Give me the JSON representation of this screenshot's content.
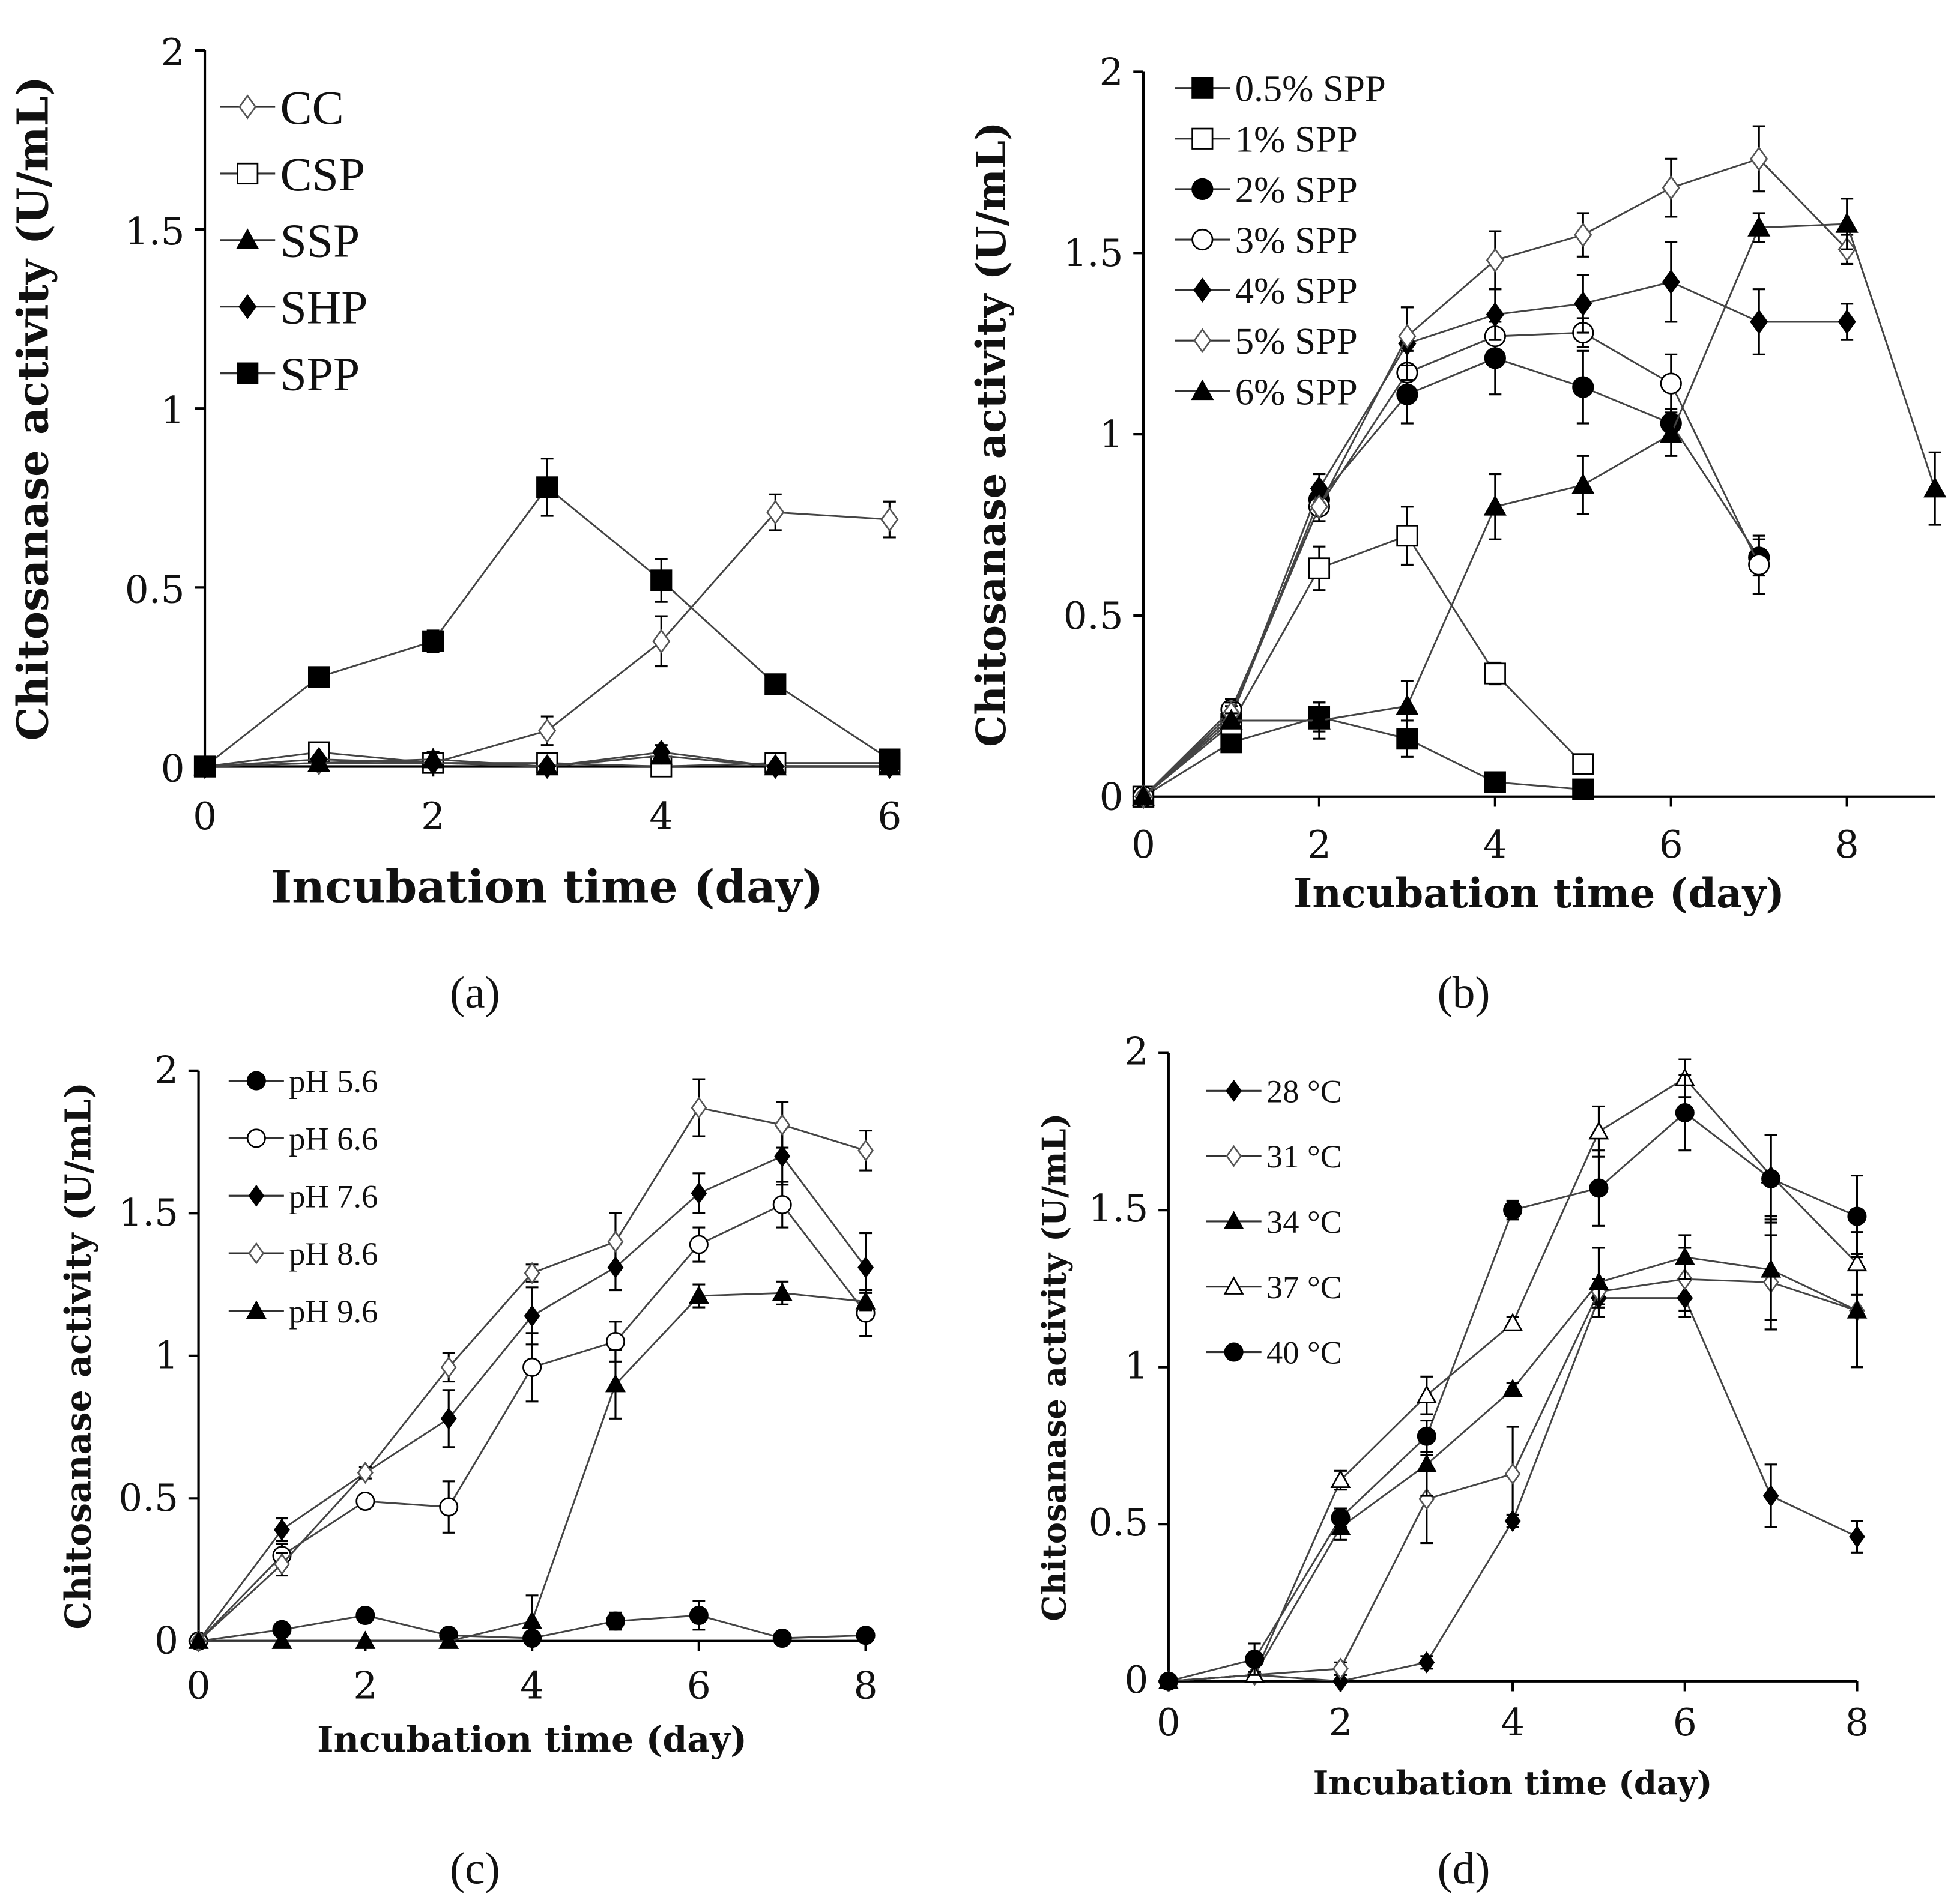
{
  "chart_data": [
    {
      "panel": "(a)",
      "type": "line",
      "xlabel": "Incubation time (day)",
      "ylabel": "Chitosanase activity (U/mL)",
      "xlim": [
        0,
        6
      ],
      "ylim": [
        0,
        2
      ],
      "xticks": [
        0,
        2,
        4,
        6
      ],
      "yticks": [
        0,
        0.5,
        1,
        1.5,
        2
      ],
      "ytick_labels": [
        "0",
        "0.5",
        "1",
        "1.5",
        "2"
      ],
      "legend_position": "top-left",
      "x": [
        0,
        1,
        2,
        3,
        4,
        5,
        6
      ],
      "series": [
        {
          "name": "CC",
          "marker": "open-diamond",
          "values": [
            0,
            0.01,
            0.01,
            0.1,
            0.35,
            0.71,
            0.69
          ],
          "err": [
            0,
            0,
            0,
            0.04,
            0.07,
            0.05,
            0.05
          ]
        },
        {
          "name": "CSP",
          "marker": "open-square",
          "values": [
            0,
            0.04,
            0.01,
            0.01,
            0,
            0.01,
            0.01
          ],
          "err": [
            0,
            0.02,
            0.02,
            0.01,
            0.01,
            0.02,
            0.01
          ]
        },
        {
          "name": "SSP",
          "marker": "filled-triangle",
          "values": [
            0,
            0.01,
            0.02,
            0,
            0.03,
            0,
            0
          ],
          "err": [
            0,
            0.01,
            0.02,
            0,
            0.02,
            0,
            0
          ]
        },
        {
          "name": "SHP",
          "marker": "filled-diamond",
          "values": [
            0,
            0.02,
            0.01,
            0,
            0.04,
            0,
            0
          ],
          "err": [
            0,
            0.01,
            0.03,
            0,
            0.02,
            0,
            0
          ]
        },
        {
          "name": "SPP",
          "marker": "filled-square",
          "values": [
            0,
            0.25,
            0.35,
            0.78,
            0.52,
            0.23,
            0.02
          ],
          "err": [
            0,
            0.01,
            0.03,
            0.08,
            0.06,
            0.01,
            0.02
          ]
        }
      ]
    },
    {
      "panel": "(b)",
      "type": "line",
      "xlabel": "Incubation time (day)",
      "ylabel": "Chitosanase activity (U/mL)",
      "xlim": [
        0,
        9
      ],
      "ylim": [
        0,
        2
      ],
      "xticks": [
        0,
        2,
        4,
        6,
        8
      ],
      "yticks": [
        0,
        0.5,
        1,
        1.5,
        2
      ],
      "ytick_labels": [
        "0",
        "0.5",
        "1",
        "1.5",
        "2"
      ],
      "legend_position": "top-left",
      "series": [
        {
          "name": "0.5% SPP",
          "marker": "filled-square",
          "x": [
            0,
            1,
            2,
            3,
            4,
            5
          ],
          "values": [
            0,
            0.15,
            0.22,
            0.16,
            0.04,
            0.02
          ],
          "err": [
            0,
            0.02,
            0.04,
            0.05,
            0.01,
            0.01
          ]
        },
        {
          "name": "1% SPP",
          "marker": "open-square",
          "x": [
            0,
            1,
            2,
            3,
            4,
            5
          ],
          "values": [
            0,
            0.2,
            0.63,
            0.72,
            0.34,
            0.09
          ],
          "err": [
            0,
            0.03,
            0.06,
            0.08,
            0.03,
            0.01
          ]
        },
        {
          "name": "2% SPP",
          "marker": "filled-circle",
          "x": [
            0,
            1,
            2,
            3,
            4,
            5,
            6,
            7
          ],
          "values": [
            0,
            0.22,
            0.82,
            1.11,
            1.21,
            1.13,
            1.03,
            0.66
          ],
          "err": [
            0,
            0.03,
            0.04,
            0.08,
            0.1,
            0.1,
            0.04,
            0.05
          ]
        },
        {
          "name": "3% SPP",
          "marker": "open-circle",
          "x": [
            0,
            1,
            2,
            3,
            4,
            5,
            6,
            7
          ],
          "values": [
            0,
            0.24,
            0.8,
            1.17,
            1.27,
            1.28,
            1.14,
            0.64
          ],
          "err": [
            0,
            0.03,
            0.04,
            0.06,
            0.06,
            0.04,
            0.08,
            0.08
          ]
        },
        {
          "name": "4% SPP",
          "marker": "filled-diamond",
          "x": [
            0,
            1,
            2,
            3,
            4,
            5,
            6,
            7,
            8
          ],
          "values": [
            0,
            0.22,
            0.85,
            1.25,
            1.33,
            1.36,
            1.42,
            1.31,
            1.31
          ],
          "err": [
            0,
            0.03,
            0.04,
            0.1,
            0.07,
            0.08,
            0.11,
            0.09,
            0.05
          ]
        },
        {
          "name": "5% SPP",
          "marker": "open-diamond",
          "x": [
            0,
            1,
            2,
            3,
            4,
            5,
            6,
            7,
            8
          ],
          "values": [
            0,
            0.23,
            0.8,
            1.27,
            1.48,
            1.55,
            1.68,
            1.76,
            1.51
          ],
          "err": [
            0,
            0.03,
            0.04,
            0.08,
            0.08,
            0.06,
            0.08,
            0.09,
            0.04
          ]
        },
        {
          "name": "6% SPP",
          "marker": "filled-triangle",
          "x": [
            0,
            1,
            2,
            3,
            4,
            5,
            6,
            7,
            8,
            9
          ],
          "values": [
            0,
            0.21,
            0.21,
            0.25,
            0.8,
            0.86,
            1.0,
            1.57,
            1.58,
            0.85
          ],
          "err": [
            0,
            0.02,
            0.05,
            0.07,
            0.09,
            0.08,
            0.06,
            0.04,
            0.07,
            0.1
          ]
        }
      ]
    },
    {
      "panel": "(c)",
      "type": "line",
      "xlabel": "Incubation time (day)",
      "ylabel": "Chitosanase activity (U/mL)",
      "xlim": [
        0,
        8
      ],
      "ylim": [
        0,
        2
      ],
      "xticks": [
        0,
        2,
        4,
        6,
        8
      ],
      "yticks": [
        0,
        0.5,
        1,
        1.5,
        2
      ],
      "ytick_labels": [
        "0",
        "0.5",
        "1",
        "1.5",
        "2"
      ],
      "legend_position": "top-left",
      "x": [
        0,
        1,
        2,
        3,
        4,
        5,
        6,
        7,
        8
      ],
      "series": [
        {
          "name": "pH 5.6",
          "marker": "filled-circle",
          "values": [
            0,
            0.04,
            0.09,
            0.02,
            0.01,
            0.07,
            0.09,
            0.01,
            0.02
          ],
          "err": [
            0,
            0.01,
            0.02,
            0.01,
            0.02,
            0.03,
            0.05,
            0.01,
            0.01
          ]
        },
        {
          "name": "pH 6.6",
          "marker": "open-circle",
          "values": [
            0,
            0.3,
            0.49,
            0.47,
            0.96,
            1.05,
            1.39,
            1.53,
            1.15
          ],
          "err": [
            0,
            0.04,
            0.02,
            0.09,
            0.12,
            0.07,
            0.06,
            0.08,
            0.08
          ]
        },
        {
          "name": "pH 7.6",
          "marker": "filled-diamond",
          "values": [
            0,
            0.39,
            0.59,
            0.78,
            1.14,
            1.31,
            1.57,
            1.7,
            1.31
          ],
          "err": [
            0,
            0.04,
            0.02,
            0.1,
            0.1,
            0.08,
            0.07,
            0.1,
            0.12
          ]
        },
        {
          "name": "pH 8.6",
          "marker": "open-diamond",
          "values": [
            0,
            0.27,
            0.59,
            0.96,
            1.29,
            1.4,
            1.87,
            1.81,
            1.72
          ],
          "err": [
            0,
            0.04,
            0.02,
            0.05,
            0.03,
            0.1,
            0.1,
            0.08,
            0.07
          ]
        },
        {
          "name": "pH 9.6",
          "marker": "filled-triangle",
          "values": [
            0,
            0,
            0,
            0,
            0.07,
            0.9,
            1.21,
            1.22,
            1.19
          ],
          "err": [
            0,
            0,
            0,
            0,
            0.09,
            0.12,
            0.04,
            0.04,
            0.03
          ]
        }
      ]
    },
    {
      "panel": "(d)",
      "type": "line",
      "xlabel": "Incubation time (day)",
      "ylabel": "Chitosanase activity (U/mL)",
      "xlim": [
        0,
        8
      ],
      "ylim": [
        0,
        2
      ],
      "xticks": [
        0,
        2,
        4,
        6,
        8
      ],
      "yticks": [
        0,
        0.5,
        1,
        1.5,
        2
      ],
      "ytick_labels": [
        "0",
        "0.5",
        "1",
        "1.5",
        "2"
      ],
      "legend_position": "top-left",
      "x": [
        0,
        1,
        2,
        3,
        4,
        5,
        6,
        7,
        8
      ],
      "series": [
        {
          "name": "28 °C",
          "marker": "filled-diamond",
          "values": [
            0,
            0.02,
            0,
            0.06,
            0.51,
            1.22,
            1.22,
            0.59,
            0.46
          ],
          "err": [
            0,
            0.01,
            0,
            0.02,
            0.02,
            0.03,
            0.06,
            0.1,
            0.05
          ]
        },
        {
          "name": "31 °C",
          "marker": "open-diamond",
          "values": [
            0,
            0.02,
            0.04,
            0.58,
            0.66,
            1.24,
            1.28,
            1.27,
            1.18
          ],
          "err": [
            0,
            0.01,
            0.02,
            0.14,
            0.15,
            0.04,
            0.1,
            0.15,
            0.18
          ]
        },
        {
          "name": "34 °C",
          "marker": "filled-triangle",
          "values": [
            0,
            0.02,
            0.49,
            0.69,
            0.93,
            1.27,
            1.35,
            1.31,
            1.18
          ],
          "err": [
            0,
            0.01,
            0.04,
            0.1,
            0.02,
            0.11,
            0.07,
            0.16,
            0.18
          ]
        },
        {
          "name": "37 °C",
          "marker": "open-triangle",
          "values": [
            0,
            0.02,
            0.64,
            0.91,
            1.14,
            1.75,
            1.92,
            1.61,
            1.33
          ],
          "err": [
            0,
            0.01,
            0.03,
            0.06,
            0.02,
            0.08,
            0.06,
            0.13,
            0.1
          ]
        },
        {
          "name": "40 °C",
          "marker": "filled-circle",
          "values": [
            0,
            0.07,
            0.52,
            0.78,
            1.5,
            1.57,
            1.81,
            1.6,
            1.48
          ],
          "err": [
            0,
            0.05,
            0.03,
            0.05,
            0.03,
            0.12,
            0.12,
            0.14,
            0.13
          ]
        }
      ]
    }
  ]
}
